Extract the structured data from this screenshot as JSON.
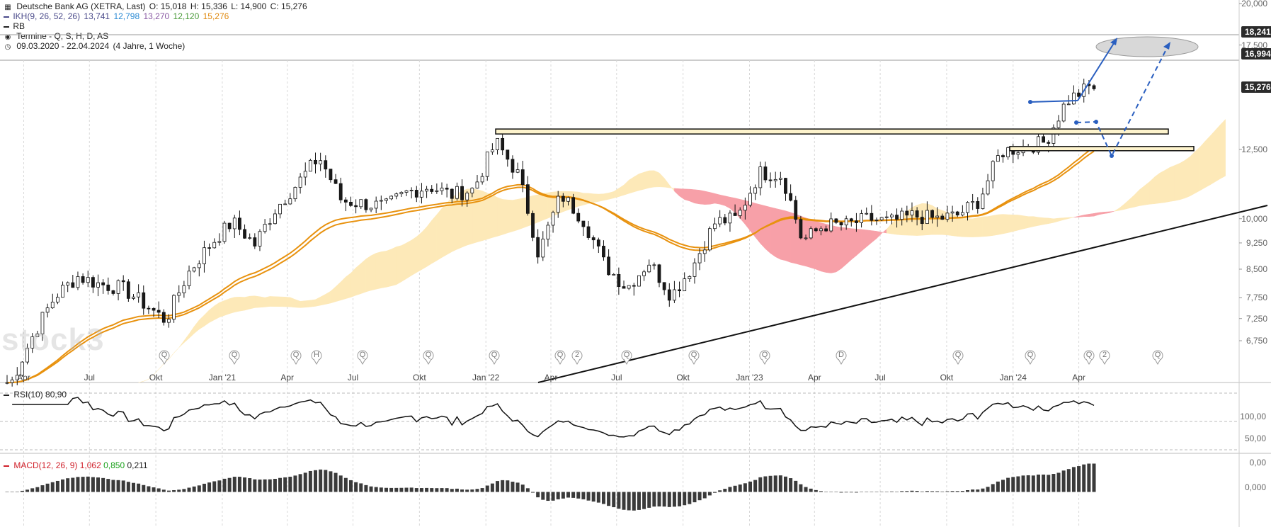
{
  "header": {
    "title_line": "Deutsche Bank AG (XETRA, Last)",
    "ohlc": {
      "o_label": "O: 15,018",
      "h_label": "H: 15,336",
      "l_label": "L: 14,900",
      "c_label": "C: 15,276"
    },
    "ikh_label": "IKH(9, 26, 52, 26)",
    "ikh_values": [
      "13,741",
      "12,798",
      "13,270",
      "12,120",
      "15,276"
    ],
    "ikh_colors": [
      "#4a4a8a",
      "#2a8ad4",
      "#8a5aa4",
      "#4a9a3a",
      "#e08a10"
    ],
    "rb_label": "RB",
    "termine_label": "Termine - Q, S, H, D, AS",
    "range_label": "09.03.2020 - 22.04.2024",
    "range_detail": "(4 Jahre, 1 Woche)"
  },
  "price_axis": {
    "ticks": [
      "20,000",
      "17,500",
      "12,500",
      "10,000",
      "9,250",
      "8,500",
      "7,750",
      "7,250",
      "6,750"
    ],
    "tags": [
      {
        "label": "18,241"
      },
      {
        "label": "16,994"
      },
      {
        "label": "15,276"
      }
    ]
  },
  "time_axis": {
    "labels": [
      "Apr",
      "Jul",
      "Okt",
      "Jan '21",
      "Apr",
      "Jul",
      "Okt",
      "Jan '22",
      "Apr",
      "Jul",
      "Okt",
      "Jan '23",
      "Apr",
      "Jul",
      "Okt",
      "Jan '24",
      "Apr"
    ]
  },
  "event_markers": [
    "Q",
    "Q",
    "Q",
    "H",
    "Q",
    "Q",
    "Q",
    "Q",
    "2",
    "Q",
    "Q",
    "Q",
    "D",
    "Q",
    "Q",
    "Q",
    "2",
    "Q"
  ],
  "rsi": {
    "label": "RSI(10)",
    "value": "80,90",
    "ticks": [
      "100,00",
      "50,00",
      "0,00"
    ]
  },
  "macd": {
    "label": "MACD(12, 26, 9)",
    "values": [
      "1,062",
      "0,850",
      "0,211"
    ],
    "value_colors": [
      "#d0202a",
      "#1aa01a",
      "#222"
    ],
    "ticks": [
      "0,000"
    ]
  },
  "watermark": "stock3",
  "colors": {
    "bull": "#ffffff",
    "bear": "#1a1a1a",
    "ema": "#e8920f",
    "cloud_up": "#fde9b8",
    "cloud_down": "#f7a0a8",
    "arrow": "#2a5fc0",
    "macd_bar": "#3a3a3a"
  },
  "chart_data": {
    "type": "candlestick",
    "title": "Deutsche Bank AG (XETRA, Last)",
    "date_range": [
      "2020-03-09",
      "2024-04-22"
    ],
    "weekly_close_path": [
      [
        "2020-03",
        5.9
      ],
      [
        "2020-04",
        6.9
      ],
      [
        "2020-05",
        7.8
      ],
      [
        "2020-06",
        8.3
      ],
      [
        "2020-07",
        8.1
      ],
      [
        "2020-08",
        8.0
      ],
      [
        "2020-09",
        7.6
      ],
      [
        "2020-10",
        7.2
      ],
      [
        "2020-11",
        8.4
      ],
      [
        "2020-12",
        9.2
      ],
      [
        "2021-01",
        9.9
      ],
      [
        "2021-02",
        9.2
      ],
      [
        "2021-03",
        10.3
      ],
      [
        "2021-04",
        11.2
      ],
      [
        "2021-05",
        12.2
      ],
      [
        "2021-06",
        10.6
      ],
      [
        "2021-07",
        10.5
      ],
      [
        "2021-08",
        10.4
      ],
      [
        "2021-09",
        10.9
      ],
      [
        "2021-10",
        11.1
      ],
      [
        "2021-11",
        10.8
      ],
      [
        "2021-12",
        11.0
      ],
      [
        "2022-01",
        12.8
      ],
      [
        "2022-02",
        11.5
      ],
      [
        "2022-03",
        8.9
      ],
      [
        "2022-04",
        10.8
      ],
      [
        "2022-05",
        10.0
      ],
      [
        "2022-06",
        8.6
      ],
      [
        "2022-07",
        8.0
      ],
      [
        "2022-08",
        8.7
      ],
      [
        "2022-09",
        7.8
      ],
      [
        "2022-10",
        8.6
      ],
      [
        "2022-11",
        9.9
      ],
      [
        "2022-12",
        10.0
      ],
      [
        "2023-01",
        11.6
      ],
      [
        "2023-02",
        11.5
      ],
      [
        "2023-03",
        9.3
      ],
      [
        "2023-04",
        9.8
      ],
      [
        "2023-05",
        9.8
      ],
      [
        "2023-06",
        10.0
      ],
      [
        "2023-07",
        9.9
      ],
      [
        "2023-08",
        10.1
      ],
      [
        "2023-09",
        10.0
      ],
      [
        "2023-10",
        10.1
      ],
      [
        "2023-11",
        10.6
      ],
      [
        "2023-12",
        12.4
      ],
      [
        "2024-01",
        12.6
      ],
      [
        "2024-02",
        12.8
      ],
      [
        "2024-03",
        14.6
      ],
      [
        "2024-04",
        15.276
      ]
    ],
    "horizontal_zones": [
      12.75,
      12.7
    ],
    "target_zone": [
      16.994,
      18.241
    ],
    "ylim": [
      5.9,
      20.0
    ]
  }
}
